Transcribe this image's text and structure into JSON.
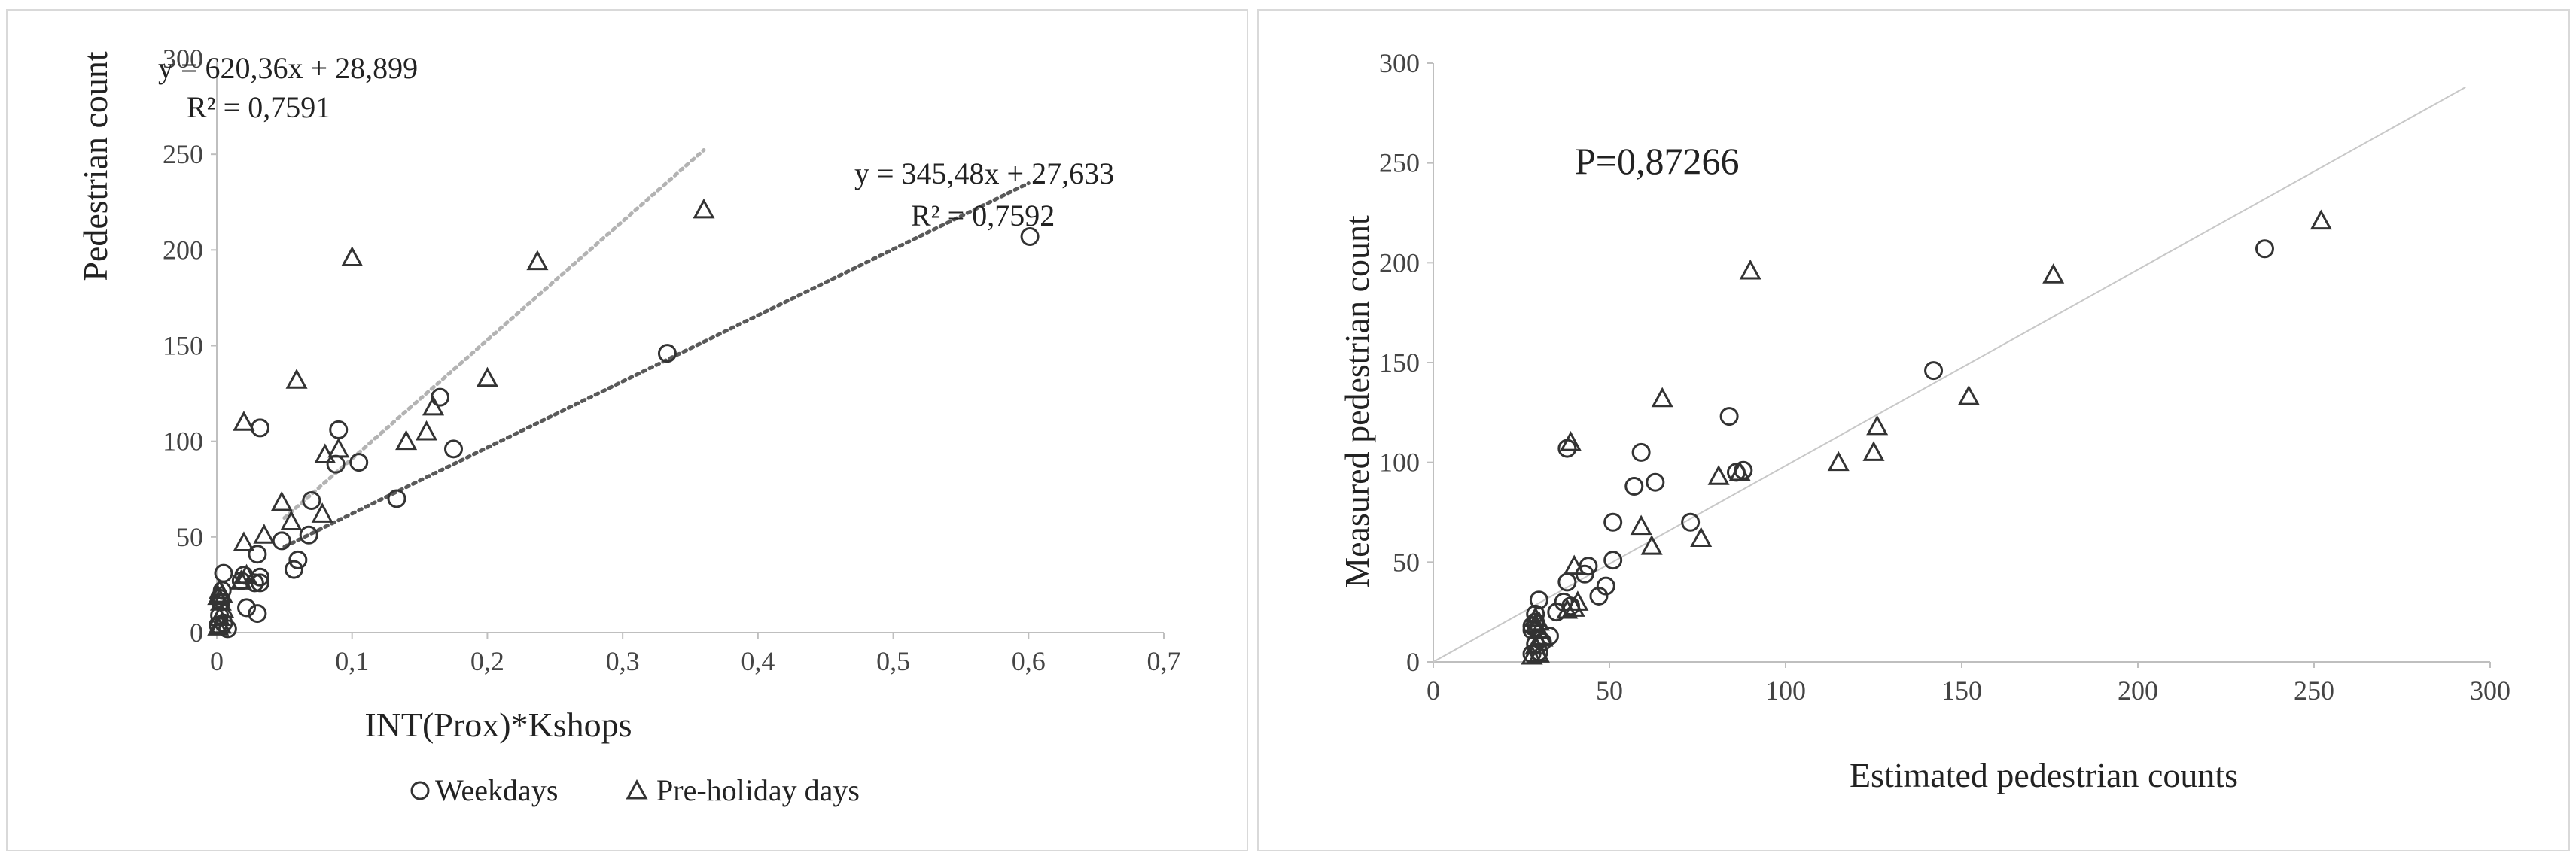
{
  "chart_data": [
    {
      "type": "scatter",
      "xlabel": "INT(Prox)*Kshops",
      "ylabel": "Pedestrian count",
      "xlim": [
        0,
        0.7
      ],
      "ylim": [
        0,
        300
      ],
      "xticks": [
        "0",
        "0,1",
        "0,2",
        "0,3",
        "0,4",
        "0,5",
        "0,6",
        "0,7"
      ],
      "yticks": [
        "0",
        "50",
        "100",
        "150",
        "200",
        "250",
        "300"
      ],
      "xtick_values": [
        0,
        0.1,
        0.2,
        0.3,
        0.4,
        0.5,
        0.6,
        0.7
      ],
      "ytick_values": [
        0,
        50,
        100,
        150,
        200,
        250,
        300
      ],
      "legend_position": "bottom",
      "grid": false,
      "series": [
        {
          "name": "Weekdays",
          "marker": "circle",
          "x": [
            0.601,
            0.333,
            0.165,
            0.175,
            0.09,
            0.105,
            0.088,
            0.032,
            0.133,
            0.07,
            0.068,
            0.06,
            0.057,
            0.048,
            0.03,
            0.032,
            0.028,
            0.02,
            0.022,
            0.018,
            0.03,
            0.032,
            0.005,
            0.004,
            0.002,
            0.005,
            0.008,
            0.003,
            0.002,
            0.001
          ],
          "y": [
            207,
            146,
            123,
            96,
            106,
            89,
            88,
            107,
            70,
            69,
            51,
            38,
            33,
            48,
            41,
            29,
            26,
            30,
            13,
            27,
            10,
            26,
            31,
            22,
            9,
            5,
            2,
            16,
            18,
            4
          ]
        },
        {
          "name": "Pre-holiday days",
          "marker": "triangle",
          "x": [
            0.36,
            0.237,
            0.1,
            0.059,
            0.02,
            0.2,
            0.16,
            0.155,
            0.14,
            0.09,
            0.08,
            0.078,
            0.055,
            0.048,
            0.035,
            0.02,
            0.022,
            0.018,
            0.002,
            0.003,
            0.001,
            0.004,
            0.002,
            0.005,
            0.003,
            0.001
          ],
          "y": [
            221,
            194,
            196,
            132,
            110,
            133,
            118,
            105,
            100,
            96,
            93,
            62,
            58,
            68,
            51,
            47,
            30,
            27,
            22,
            16,
            19,
            20,
            8,
            12,
            4,
            3
          ]
        }
      ],
      "trendlines": [
        {
          "series": "Pre-holiday days",
          "slope": 620.36,
          "intercept": 28.899,
          "x_range": [
            0.05,
            0.36
          ],
          "color": "#b3b3b3",
          "equation": "y = 620,36x + 28,899",
          "r2": "R² = 0,7591"
        },
        {
          "series": "Weekdays",
          "slope": 345.48,
          "intercept": 27.633,
          "x_range": [
            0.05,
            0.6
          ],
          "color": "#595959",
          "equation": "y = 345,48x + 27,633",
          "r2": "R² = 0,7592"
        }
      ]
    },
    {
      "type": "scatter",
      "xlabel": "Estimated pedestrian counts",
      "ylabel": "Measured pedestrian count",
      "xlim": [
        0,
        300
      ],
      "ylim": [
        0,
        300
      ],
      "xticks": [
        "0",
        "50",
        "100",
        "150",
        "200",
        "250",
        "300"
      ],
      "yticks": [
        "0",
        "50",
        "100",
        "150",
        "200",
        "250",
        "300"
      ],
      "xtick_values": [
        0,
        50,
        100,
        150,
        200,
        250,
        300
      ],
      "ytick_values": [
        0,
        50,
        100,
        150,
        200,
        250,
        300
      ],
      "annotation": "P=0,87266",
      "grid": false,
      "reference_line": {
        "from": [
          0,
          0
        ],
        "to": [
          293,
          288
        ],
        "color": "#c8c8c8"
      },
      "series": [
        {
          "marker": "circle",
          "x": [
            236,
            142,
            84,
            59,
            57,
            63,
            88,
            86,
            73,
            51,
            51,
            38,
            38,
            44,
            43,
            49,
            47,
            39,
            37,
            35,
            33,
            31,
            30,
            29,
            29,
            28,
            29,
            30,
            28,
            28
          ],
          "y": [
            207,
            146,
            123,
            105,
            88,
            90,
            96,
            95,
            70,
            70,
            51,
            107,
            40,
            48,
            44,
            38,
            33,
            28,
            30,
            25,
            13,
            10,
            31,
            24,
            20,
            16,
            9,
            5,
            18,
            4
          ]
        },
        {
          "marker": "triangle",
          "x": [
            252,
            176,
            90,
            65,
            39,
            152,
            126,
            125,
            115,
            87,
            81,
            76,
            62,
            59,
            40,
            41,
            40,
            38,
            29,
            30,
            29,
            30,
            29,
            31,
            30,
            28
          ],
          "y": [
            221,
            194,
            196,
            132,
            110,
            133,
            118,
            105,
            100,
            95,
            93,
            62,
            58,
            68,
            48,
            30,
            27,
            26,
            22,
            16,
            19,
            20,
            8,
            12,
            4,
            3
          ]
        }
      ]
    }
  ]
}
